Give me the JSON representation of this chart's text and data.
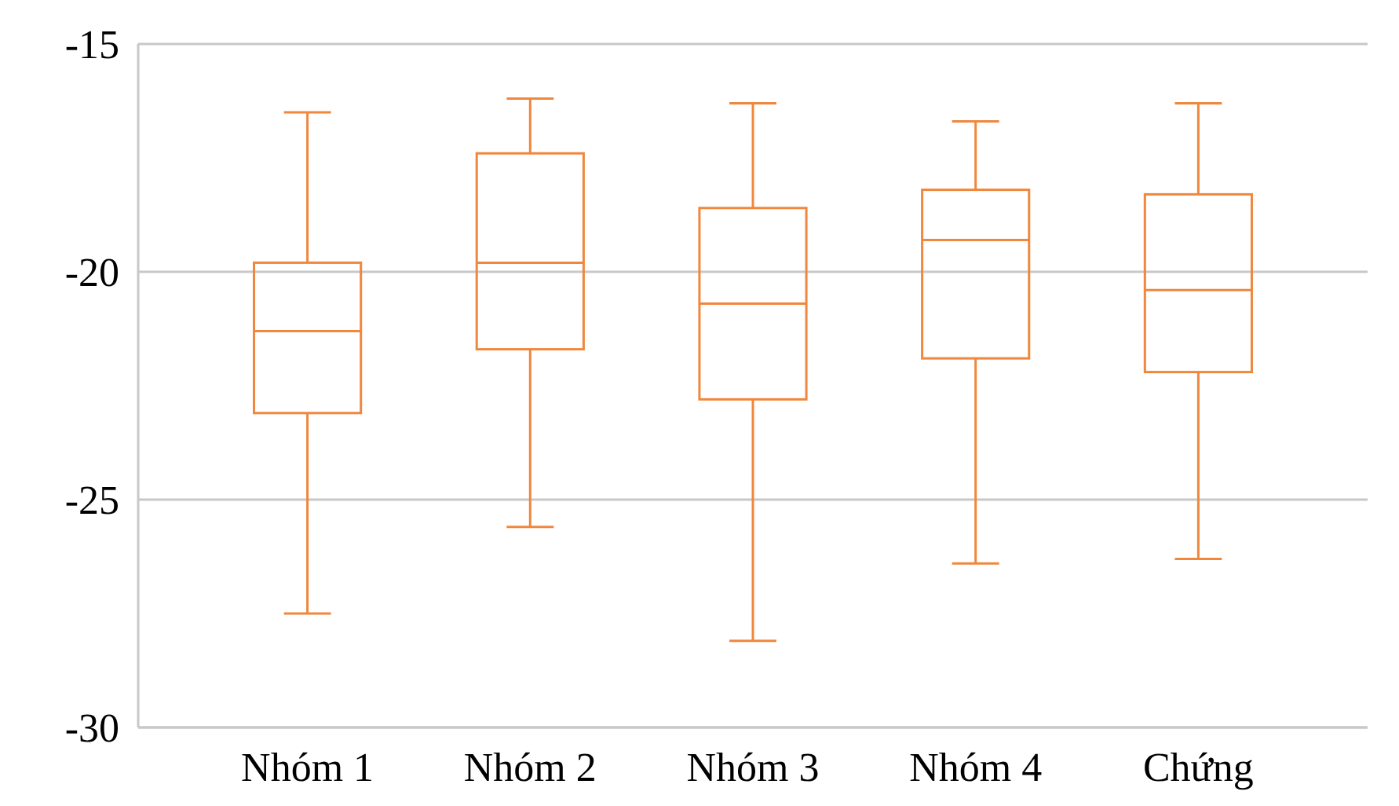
{
  "chart_data": {
    "type": "box",
    "categories": [
      "Nhóm 1",
      "Nhóm 2",
      "Nhóm 3",
      "Nhóm 4",
      "Chứng"
    ],
    "series": [
      {
        "color": "#f0873c",
        "boxes": [
          {
            "low": -27.5,
            "q1": -23.1,
            "median": -21.3,
            "q3": -19.8,
            "high": -16.5
          },
          {
            "low": -25.6,
            "q1": -21.7,
            "median": -19.8,
            "q3": -17.4,
            "high": -16.2
          },
          {
            "low": -28.1,
            "q1": -22.8,
            "median": -20.7,
            "q3": -18.6,
            "high": -16.3
          },
          {
            "low": -26.4,
            "q1": -21.9,
            "median": -19.3,
            "q3": -18.2,
            "high": -16.7
          },
          {
            "low": -26.3,
            "q1": -22.2,
            "median": -20.4,
            "q3": -18.3,
            "high": -16.3
          }
        ]
      }
    ],
    "ylim": [
      -30,
      -15
    ],
    "yticks": [
      -30,
      -25,
      -20,
      -15
    ],
    "grid": "y"
  }
}
